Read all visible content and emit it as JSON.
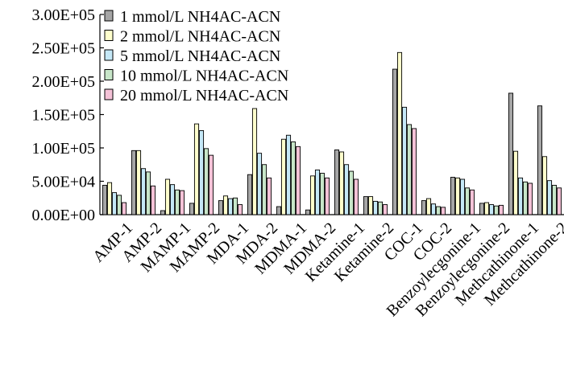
{
  "chart_data": {
    "type": "bar",
    "title": "",
    "xlabel": "",
    "ylabel": "",
    "ylim": [
      0,
      300000
    ],
    "y_ticks": [
      0,
      50000,
      100000,
      150000,
      200000,
      250000,
      300000
    ],
    "y_tick_labels": [
      "0.00E+00",
      "5.00E+04",
      "1.00E+05",
      "1.50E+05",
      "2.00E+05",
      "2.50E+05",
      "3.00E+05"
    ],
    "grid": false,
    "legend_position": "top-left",
    "categories": [
      "AMP-1",
      "AMP-2",
      "MAMP-1",
      "MAMP-2",
      "MDA-1",
      "MDA-2",
      "MDMA-1",
      "MDMA-2",
      "Ketamine-1",
      "Ketamine-2",
      "COC-1",
      "COC-2",
      "Benzoylecgonine-1",
      "Benzoylecgonine-2",
      "Methcathinone-1",
      "Methcathinone-2"
    ],
    "series": [
      {
        "name": "1 mmol/L NH4AC-ACN",
        "color": "#a6a6a6",
        "values": [
          44000,
          96000,
          6000,
          17000,
          21000,
          60000,
          12000,
          7000,
          97000,
          27000,
          218000,
          21000,
          56000,
          17000,
          182000,
          163000
        ]
      },
      {
        "name": "2 mmol/L NH4AC-ACN",
        "color": "#ffffcc",
        "values": [
          48000,
          96000,
          53000,
          136000,
          28000,
          159000,
          113000,
          58000,
          94000,
          27000,
          243000,
          24000,
          55000,
          18000,
          95000,
          87000
        ]
      },
      {
        "name": "5 mmol/L NH4AC-ACN",
        "color": "#c5e8f7",
        "values": [
          33000,
          69000,
          45000,
          126000,
          24000,
          92000,
          119000,
          67000,
          75000,
          20000,
          161000,
          16000,
          53000,
          15000,
          55000,
          51000
        ]
      },
      {
        "name": "10 mmol/L NH4AC-ACN",
        "color": "#c8e6c9",
        "values": [
          29000,
          64000,
          37000,
          99000,
          25000,
          75000,
          109000,
          62000,
          65000,
          19000,
          135000,
          12000,
          40000,
          13000,
          49000,
          44000
        ]
      },
      {
        "name": "20 mmol/L NH4AC-ACN",
        "color": "#f4c2d7",
        "values": [
          18000,
          43000,
          36000,
          89000,
          15000,
          55000,
          102000,
          55000,
          53000,
          15000,
          129000,
          11000,
          37000,
          14000,
          47000,
          40000
        ]
      }
    ]
  }
}
